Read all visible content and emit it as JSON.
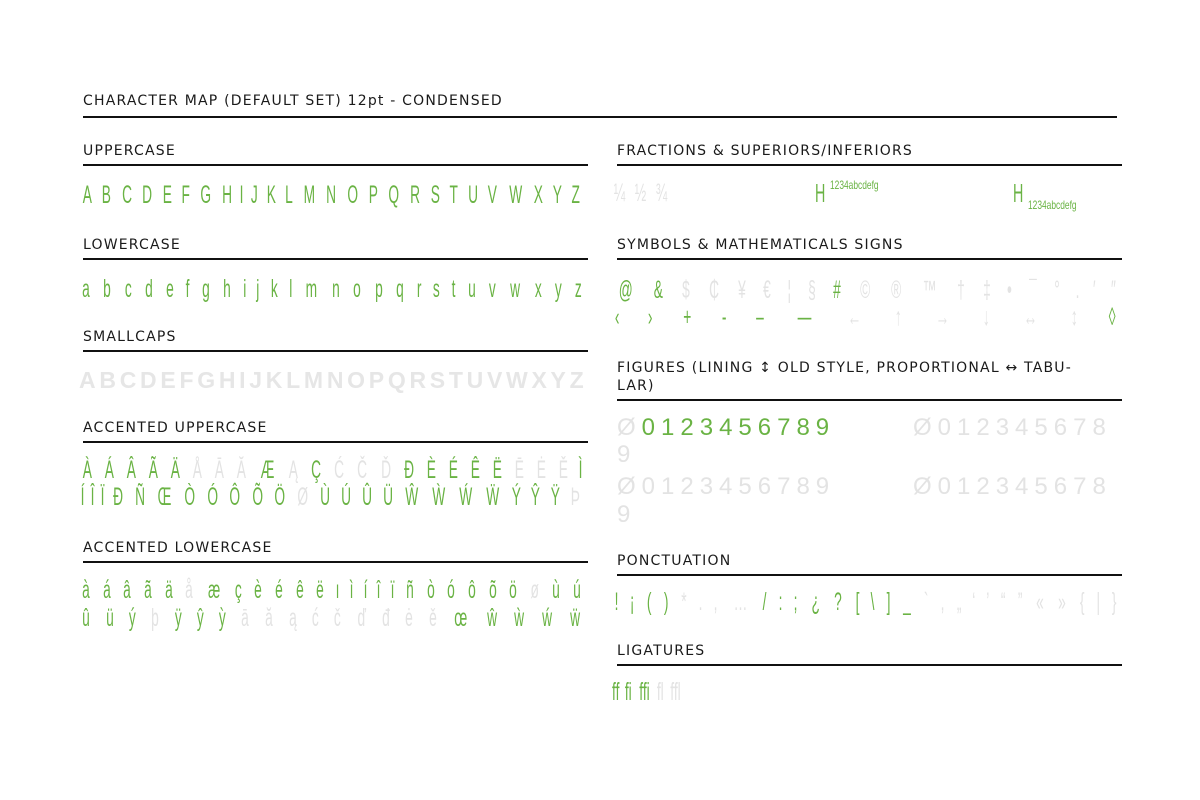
{
  "title": "CHARACTER MAP (DEFAULT SET) 12pt - CONDENSED",
  "left": [
    {
      "heading": "UPPERCASE",
      "rows": [
        [
          {
            "color": "#6ab344",
            "glyphs": [
              "A",
              "B",
              "C",
              "D",
              "E",
              "F",
              "G",
              "H",
              "I",
              "J",
              "K",
              "L",
              "M",
              "N",
              "O",
              "P",
              "Q",
              "R",
              "S",
              "T",
              "U",
              "V",
              "W",
              "X",
              "Y",
              "Z"
            ]
          }
        ]
      ]
    },
    {
      "heading": "LOWERCASE",
      "rows": [
        [
          {
            "color": "#6ab344",
            "glyphs": [
              "a",
              "b",
              "c",
              "d",
              "e",
              "f",
              "g",
              "h",
              "i",
              "j",
              "k",
              "l",
              "m",
              "n",
              "o",
              "p",
              "q",
              "r",
              "s",
              "t",
              "u",
              "v",
              "w",
              "x",
              "y",
              "z"
            ]
          }
        ]
      ]
    },
    {
      "heading": "SMALLCAPS",
      "rows": [
        [
          {
            "color": "#e6e6e6",
            "glyphs": [
              "A",
              "B",
              "C",
              "D",
              "E",
              "F",
              "G",
              "H",
              "I",
              "J",
              "K",
              "L",
              "M",
              "N",
              "O",
              "P",
              "Q",
              "R",
              "S",
              "T",
              "U",
              "V",
              "W",
              "X",
              "Y",
              "Z"
            ]
          }
        ]
      ]
    },
    {
      "heading": "ACCENTED UPPERCASE",
      "rows": [
        [
          {
            "color": "#6ab344",
            "glyphs": [
              "À",
              "Á",
              "Â",
              "Ã",
              "Ä"
            ]
          },
          {
            "color": "#e3e3e3",
            "glyphs": [
              "Å",
              "Ā",
              "Ă"
            ]
          },
          {
            "color": "#6ab344",
            "glyphs": [
              "Æ"
            ]
          },
          {
            "color": "#e3e3e3",
            "glyphs": [
              "Ą"
            ]
          },
          {
            "color": "#6ab344",
            "glyphs": [
              "Ç"
            ]
          },
          {
            "color": "#e3e3e3",
            "glyphs": [
              "Ć",
              "Č",
              "Ď"
            ]
          },
          {
            "color": "#6ab344",
            "glyphs": [
              "Đ",
              "È",
              "É",
              "Ê",
              "Ë"
            ]
          },
          {
            "color": "#e3e3e3",
            "glyphs": [
              "Ē",
              "Ė",
              "Ě"
            ]
          },
          {
            "color": "#6ab344",
            "glyphs": [
              "Ì"
            ]
          }
        ],
        [
          {
            "color": "#6ab344",
            "glyphs": [
              "Í",
              "Î",
              "Ï",
              "Ð",
              "Ñ",
              "Œ",
              "Ò",
              "Ó",
              "Ô",
              "Õ",
              "Ö"
            ]
          },
          {
            "color": "#e3e3e3",
            "glyphs": [
              "Ø"
            ]
          },
          {
            "color": "#6ab344",
            "glyphs": [
              "Ù",
              "Ú",
              "Û",
              "Ü",
              "Ŵ",
              "Ẁ",
              "Ẃ",
              "Ẅ",
              "Ý",
              "Ŷ",
              "Ÿ"
            ]
          },
          {
            "color": "#e3e3e3",
            "glyphs": [
              "Þ"
            ]
          }
        ]
      ]
    },
    {
      "heading": "ACCENTED LOWERCASE",
      "rows": [
        [
          {
            "color": "#6ab344",
            "glyphs": [
              "à",
              "á",
              "â",
              "ã",
              "ä"
            ]
          },
          {
            "color": "#e3e3e3",
            "glyphs": [
              "å"
            ]
          },
          {
            "color": "#6ab344",
            "glyphs": [
              "æ",
              "ç",
              "è",
              "é",
              "ê",
              "ë",
              "ı",
              "ì",
              "í",
              "î",
              "ï",
              "ñ",
              "ò",
              "ó",
              "ô",
              "õ",
              "ö"
            ]
          },
          {
            "color": "#e3e3e3",
            "glyphs": [
              "ø"
            ]
          },
          {
            "color": "#6ab344",
            "glyphs": [
              "ù",
              "ú"
            ]
          }
        ],
        [
          {
            "color": "#6ab344",
            "glyphs": [
              "û",
              "ü",
              "ý"
            ]
          },
          {
            "color": "#e3e3e3",
            "glyphs": [
              "þ"
            ]
          },
          {
            "color": "#6ab344",
            "glyphs": [
              "ÿ",
              "ŷ",
              "ỳ"
            ]
          },
          {
            "color": "#e3e3e3",
            "glyphs": [
              "ā",
              "ă",
              "ą",
              "ć",
              "č",
              "ď",
              "đ",
              "ė",
              "ě"
            ]
          },
          {
            "color": "#6ab344",
            "glyphs": [
              "œ",
              "ŵ",
              "ẁ",
              "ẃ",
              "ẅ"
            ]
          }
        ]
      ]
    }
  ],
  "right": [
    {
      "heading": "FRACTIONS & SUPERIORS/INFERIORS",
      "rows": [
        [
          {
            "color": "#e3e3e3",
            "glyphs": [
              "¼",
              "½",
              "¾"
            ]
          }
        ]
      ],
      "samples": [
        {
          "color": "#6ab344",
          "base": "H",
          "sup": "1234abcdefg"
        },
        {
          "color": "#6ab344",
          "base": "H",
          "sub": "1234abcdefg"
        }
      ]
    },
    {
      "heading": "SYMBOLS & MATHEMATICALS SIGNS",
      "rows": [
        [
          {
            "color": "#6ab344",
            "glyphs": [
              "@",
              "&"
            ]
          },
          {
            "color": "#e3e3e3",
            "glyphs": [
              "$",
              "₵",
              "¥",
              "€",
              "¦",
              "§"
            ]
          },
          {
            "color": "#6ab344",
            "glyphs": [
              "#"
            ]
          },
          {
            "color": "#e3e3e3",
            "glyphs": [
              "©",
              "®",
              "™",
              "†",
              "‡",
              "•",
              "¯",
              "°",
              ".",
              "′",
              "″"
            ]
          }
        ],
        [
          {
            "color": "#6ab344",
            "glyphs": [
              "‹",
              "›",
              "+",
              "-",
              "–",
              "—"
            ]
          },
          {
            "color": "#e3e3e3",
            "glyphs": [
              "←",
              "↑",
              "→",
              "↓",
              "↔",
              "↕"
            ]
          },
          {
            "color": "#6ab344",
            "glyphs": [
              "◊"
            ]
          }
        ]
      ]
    },
    {
      "heading": "FIGURES (LINING ↕ OLD STYLE, PROPORTIONAL ↔ TABU-\nLAR)",
      "cells": [
        [
          {
            "color": "#e3e3e3",
            "text": "Ø"
          },
          {
            "color": "#6ab344",
            "text": "0123456789"
          }
        ],
        [
          {
            "color": "#e3e3e3",
            "text": "Ø012345678"
          }
        ],
        [
          {
            "color": "#e3e3e3",
            "text": "9"
          }
        ],
        [
          {
            "color": "#e3e3e3",
            "text": "Ø0123456789"
          }
        ],
        [
          {
            "color": "#e3e3e3",
            "text": "Ø012345678"
          }
        ],
        [
          {
            "color": "#e3e3e3",
            "text": "9"
          }
        ]
      ]
    },
    {
      "heading": "PONCTUATION",
      "rows": [
        [
          {
            "color": "#6ab344",
            "glyphs": [
              "!",
              "¡",
              "(",
              ")"
            ]
          },
          {
            "color": "#e3e3e3",
            "glyphs": [
              "*",
              ".",
              ",",
              "…"
            ]
          },
          {
            "color": "#6ab344",
            "glyphs": [
              "/",
              ":",
              ";",
              "¿",
              "?",
              "[",
              "\\",
              "]",
              "_"
            ]
          },
          {
            "color": "#e3e3e3",
            "glyphs": [
              "`",
              ",",
              "„",
              "‘",
              "’",
              "“",
              "”",
              "«",
              "»",
              "{",
              "|",
              "}"
            ]
          }
        ]
      ]
    },
    {
      "heading": "LIGATURES",
      "rows": [
        [
          {
            "color": "#6ab344",
            "glyphs": [
              "ff",
              "fi",
              "ffi"
            ]
          },
          {
            "color": "#e3e3e3",
            "glyphs": [
              "fl",
              "ffl"
            ]
          }
        ]
      ]
    }
  ]
}
